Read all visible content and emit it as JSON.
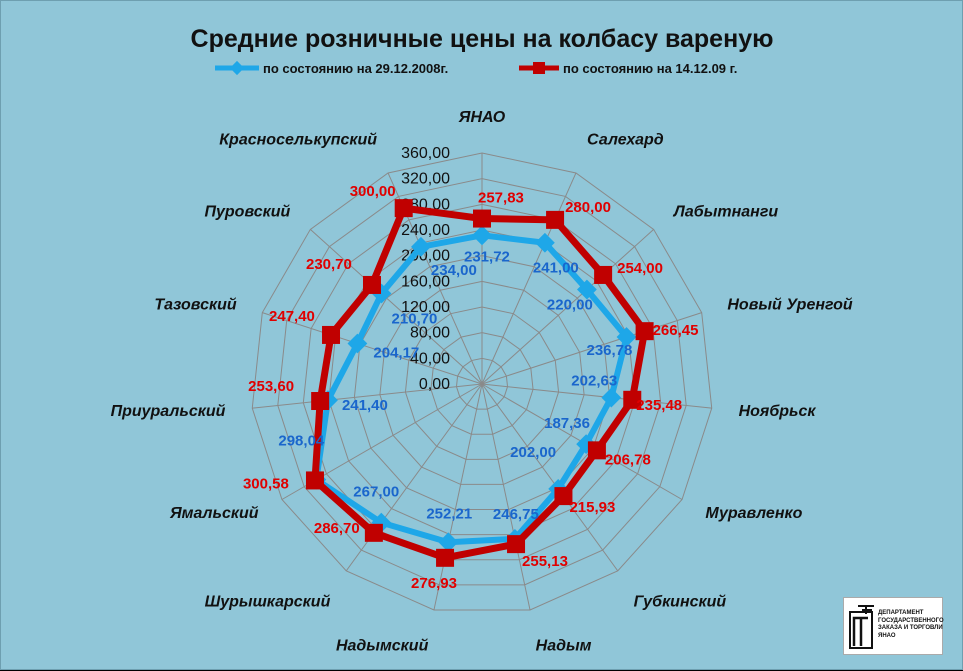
{
  "chart_data": {
    "type": "radar",
    "title": "Средние розничные цены на колбасу вареную",
    "categories": [
      "ЯНАО",
      "Салехард",
      "Лабытнанги",
      "Новый Уренгой",
      "Ноябрьск",
      "Муравленко",
      "Губкинский",
      "Надым",
      "Надымский",
      "Шурышкарский",
      "Ямальский",
      "Приуральский",
      "Тазовский",
      "Пуровский",
      "Красноселькупский"
    ],
    "series": [
      {
        "name": "по состоянию на 29.12.2008г.",
        "color": "#1ea7e8",
        "label_color": "#1a66cc",
        "values": [
          231.72,
          241.0,
          220.0,
          236.78,
          202.63,
          187.36,
          202.0,
          246.75,
          252.21,
          267.0,
          298.04,
          241.4,
          204.17,
          210.7,
          234.0
        ],
        "labels": [
          "231,72",
          "241,00",
          "220,00",
          "236,78",
          "202,63",
          "187,36",
          "202,00",
          "246,75",
          "252,21",
          "267,00",
          "298,04",
          "241,40",
          "204,17",
          "210,70",
          "234,00"
        ]
      },
      {
        "name": "по состоянию на 14.12.09 г.",
        "color": "#c00000",
        "label_color": "#e00000",
        "values": [
          257.83,
          280.0,
          254.0,
          266.45,
          235.48,
          206.78,
          215.93,
          255.13,
          276.93,
          286.7,
          300.58,
          253.6,
          247.4,
          230.7,
          300.0
        ],
        "labels": [
          "257,83",
          "280,00",
          "254,00",
          "266,45",
          "235,48",
          "206,78",
          "215,93",
          "255,13",
          "276,93",
          "286,70",
          "300,58",
          "253,60",
          "247,40",
          "230,70",
          "300,00"
        ]
      }
    ],
    "axis": {
      "min": 0,
      "max": 360,
      "step": 40,
      "ticks": [
        "0,00",
        "40,00",
        "80,00",
        "120,00",
        "160,00",
        "200,00",
        "240,00",
        "280,00",
        "320,00",
        "360,00"
      ]
    },
    "grid": true,
    "legend_position": "top"
  },
  "logo": {
    "lines": [
      "Департамент",
      "государственного",
      "заказа и торговли ЯНАО"
    ]
  }
}
